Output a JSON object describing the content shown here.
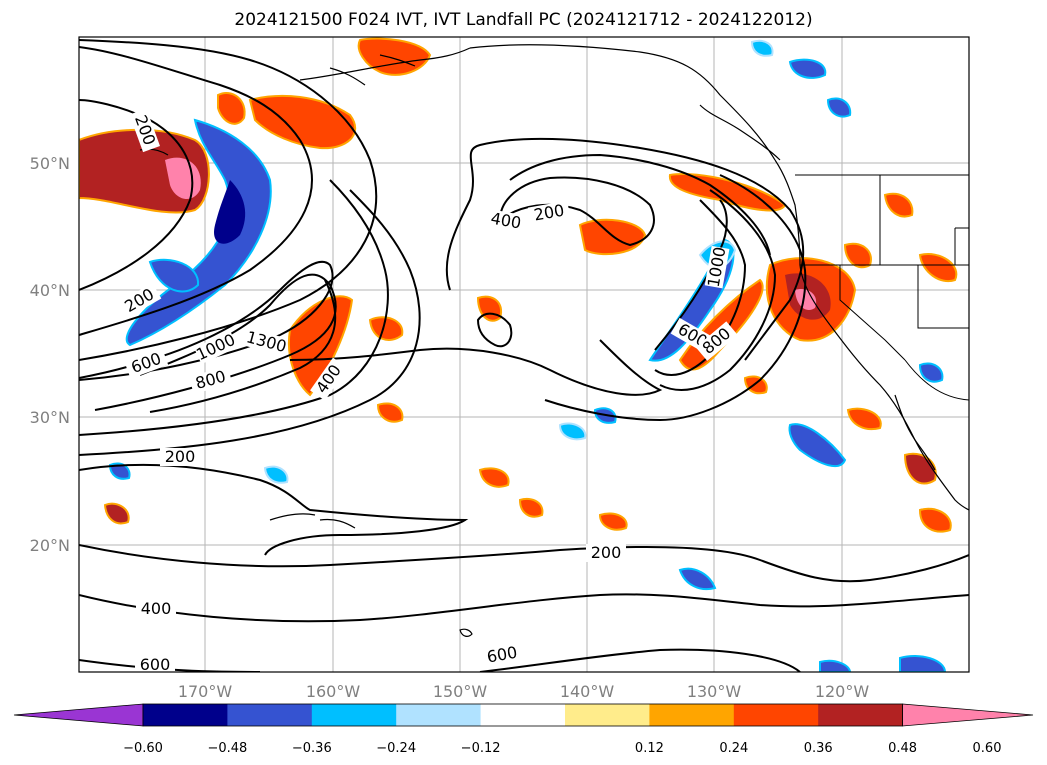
{
  "title": "2024121500 F024 IVT, IVT Landfall PC (2024121712 - 2024122012)",
  "lat_labels": [
    "50°N",
    "40°N",
    "30°N",
    "20°N"
  ],
  "lon_labels": [
    "170°W",
    "160°W",
    "150°W",
    "140°W",
    "130°W",
    "120°W"
  ],
  "contour_labels": [
    "200",
    "200",
    "600",
    "1000",
    "1300",
    "800",
    "400",
    "400",
    "200",
    "600",
    "800",
    "1000",
    "200",
    "200",
    "400",
    "600",
    "600"
  ],
  "colorbar": {
    "colors": [
      "#9a35d3",
      "#00008b",
      "#3553d1",
      "#00bfff",
      "#b0e2ff",
      "#ffffff",
      "#ffec8b",
      "#ffa500",
      "#ff4500",
      "#b22222",
      "#ff82ab"
    ],
    "ticks": [
      "−0.60",
      "−0.48",
      "−0.36",
      "−0.24",
      "−0.12",
      "0.12",
      "0.24",
      "0.36",
      "0.48",
      "0.60"
    ]
  },
  "shading": {
    "pos_color": "#ff4500",
    "pos_dark": "#b22222",
    "pos_pink": "#ff82ab",
    "pos_edge": "#ffa500",
    "neg_color": "#3553d1",
    "neg_light": "#00bfff",
    "neg_dark": "#00008b"
  }
}
